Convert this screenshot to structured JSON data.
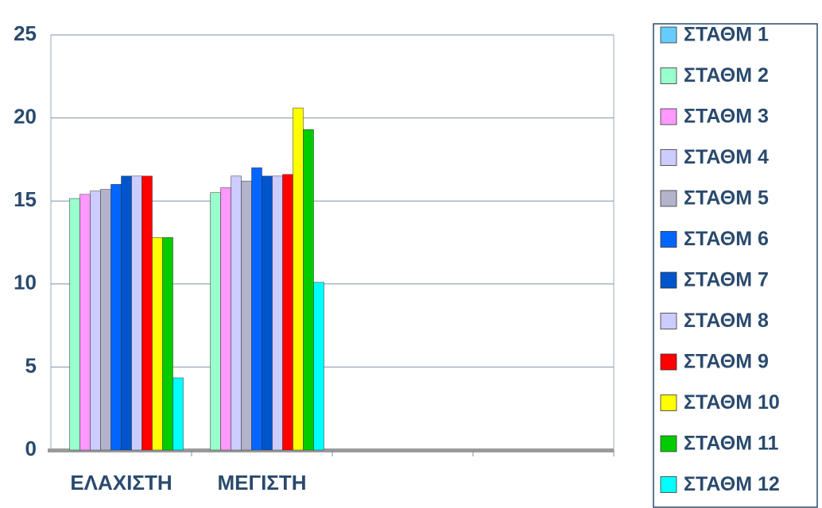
{
  "chart_data": {
    "type": "bar",
    "categories": [
      "ΕΛΑΧΙΣΤΗ",
      "ΜΕΓΙΣΤΗ",
      null,
      null
    ],
    "ylim": [
      0,
      25
    ],
    "yticks": [
      0,
      5,
      10,
      15,
      20,
      25
    ],
    "grid": true,
    "legend": "right",
    "series": [
      {
        "name": "ΣΤΑΘΜ 1",
        "color": "#66ccff",
        "values": [
          null,
          null,
          null,
          null
        ]
      },
      {
        "name": "ΣΤΑΘΜ 2",
        "color": "#99ffcc",
        "values": [
          15.15,
          15.5,
          null,
          null
        ]
      },
      {
        "name": "ΣΤΑΘΜ 3",
        "color": "#ff99ff",
        "values": [
          15.4,
          15.8,
          null,
          null
        ]
      },
      {
        "name": "ΣΤΑΘΜ 4",
        "color": "#ccccff",
        "values": [
          15.6,
          16.5,
          null,
          null
        ]
      },
      {
        "name": "ΣΤΑΘΜ 5",
        "color": "#b3b3cc",
        "values": [
          15.7,
          16.2,
          null,
          null
        ]
      },
      {
        "name": "ΣΤΑΘΜ 6",
        "color": "#0066ff",
        "values": [
          16.0,
          17.0,
          null,
          null
        ]
      },
      {
        "name": "ΣΤΑΘΜ 7",
        "color": "#0055cc",
        "values": [
          16.5,
          16.5,
          null,
          null
        ]
      },
      {
        "name": "ΣΤΑΘΜ 8",
        "color": "#ccccff",
        "values": [
          16.5,
          16.5,
          null,
          null
        ]
      },
      {
        "name": "ΣΤΑΘΜ 9",
        "color": "#ff0000",
        "values": [
          16.5,
          16.6,
          null,
          null
        ]
      },
      {
        "name": "ΣΤΑΘΜ 10",
        "color": "#ffff00",
        "values": [
          12.8,
          20.6,
          null,
          null
        ]
      },
      {
        "name": "ΣΤΑΘΜ 11",
        "color": "#00cc00",
        "values": [
          12.8,
          19.3,
          null,
          null
        ]
      },
      {
        "name": "ΣΤΑΘΜ 12",
        "color": "#00ffff",
        "values": [
          4.35,
          10.1,
          null,
          null
        ]
      }
    ]
  }
}
